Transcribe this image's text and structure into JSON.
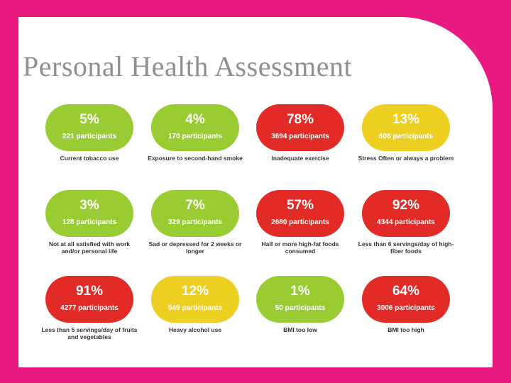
{
  "title": "Personal Health Assessment",
  "colors": {
    "background": "#e8197f",
    "green": "#99cc33",
    "red": "#e22a26",
    "yellow": "#eccf20"
  },
  "cards": [
    {
      "percent": "5%",
      "participants": "221 participants",
      "label": "Current tobacco use",
      "color": "green"
    },
    {
      "percent": "4%",
      "participants": "170 participants",
      "label": "Exposure to second-hand smoke",
      "color": "green"
    },
    {
      "percent": "78%",
      "participants": "3694 participants",
      "label": "Inadequate exercise",
      "color": "red"
    },
    {
      "percent": "13%",
      "participants": "608 participants",
      "label": "Stress Often or always a problem",
      "color": "yellow"
    },
    {
      "percent": "3%",
      "participants": "128 participants",
      "label": "Not at all satisfied with work and/or personal life",
      "color": "green"
    },
    {
      "percent": "7%",
      "participants": "329 participants",
      "label": "Sad or depressed for 2 weeks or longer",
      "color": "green"
    },
    {
      "percent": "57%",
      "participants": "2680 participants",
      "label": "Half or more high-fat foods consumed",
      "color": "red"
    },
    {
      "percent": "92%",
      "participants": "4344 participants",
      "label": "Less than 6 servings/day of high-fiber foods",
      "color": "red"
    },
    {
      "percent": "91%",
      "participants": "4277 participants",
      "label": "Less than 5 servings/day of fruits and vegetables",
      "color": "red"
    },
    {
      "percent": "12%",
      "participants": "549 participants",
      "label": "Heavy alcohol use",
      "color": "yellow"
    },
    {
      "percent": "1%",
      "participants": "50 participants",
      "label": "BMI too low",
      "color": "green"
    },
    {
      "percent": "64%",
      "participants": "3006 participants",
      "label": "BMI too high",
      "color": "red"
    }
  ]
}
